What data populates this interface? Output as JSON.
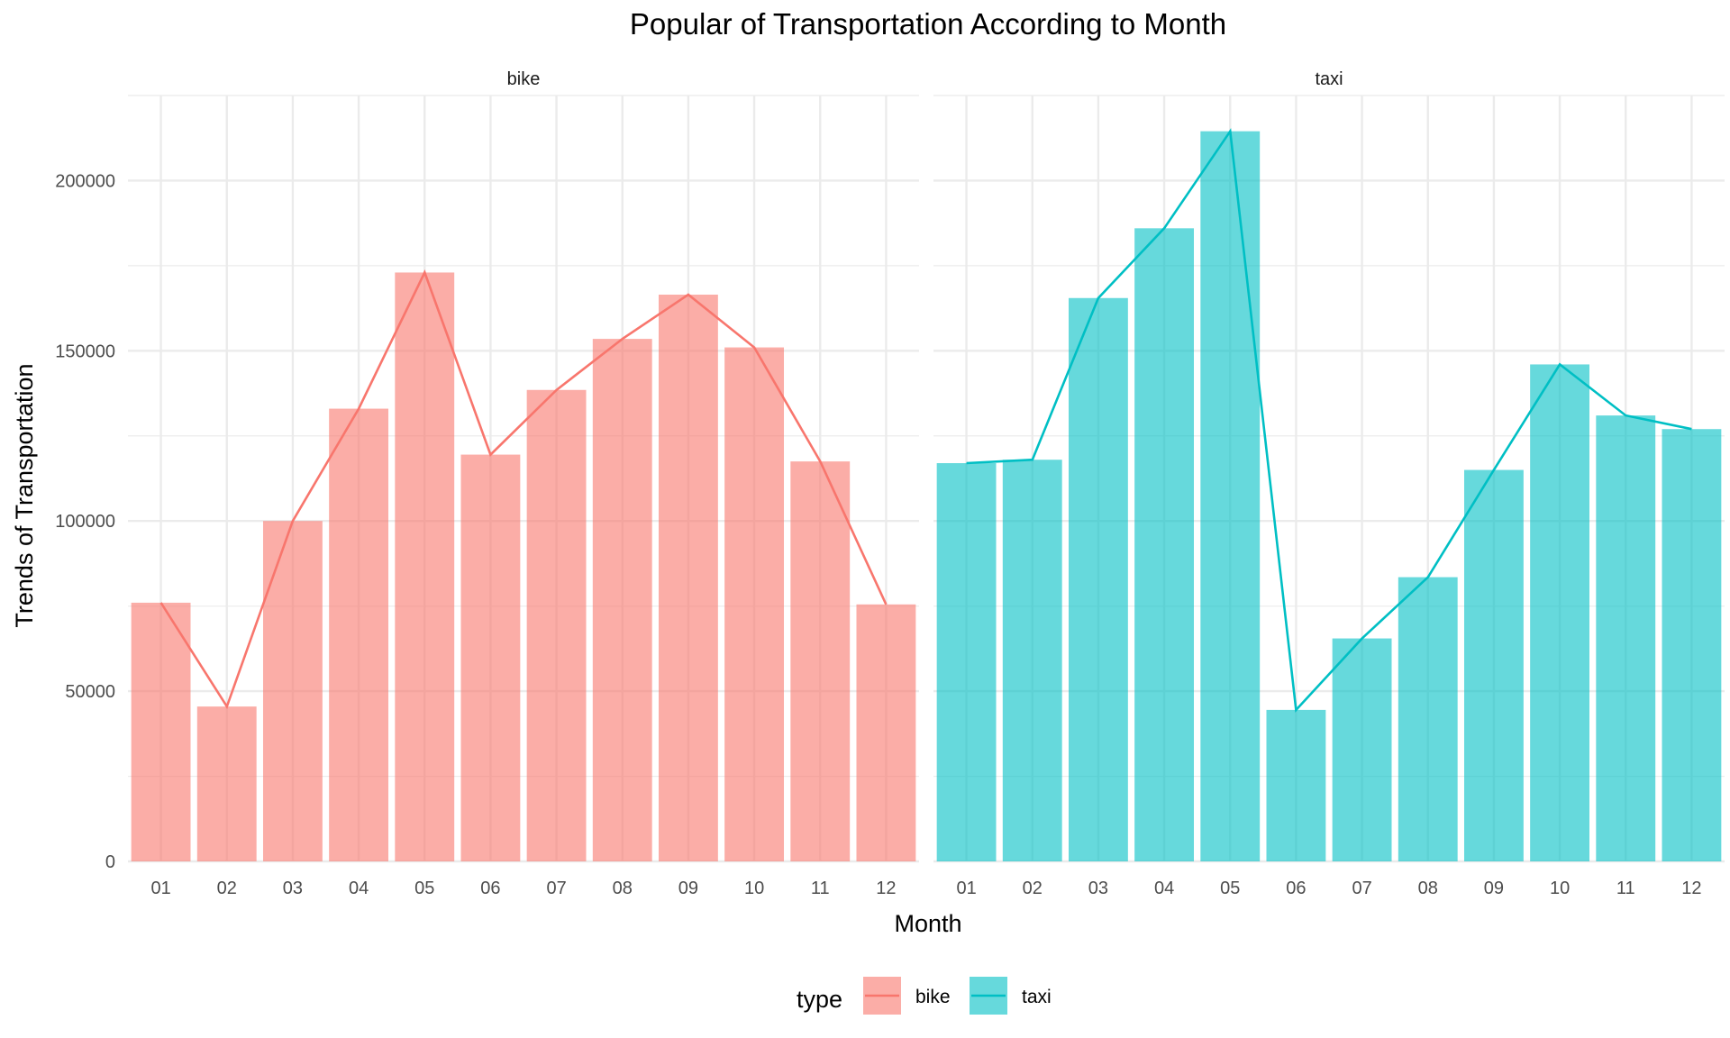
{
  "chart_data": {
    "type": "bar",
    "title": "Popular of Transportation According to Month",
    "xlabel": "Month",
    "ylabel": "Trends of Transportation",
    "ylim": [
      0,
      225000
    ],
    "yticks": [
      0,
      50000,
      100000,
      150000,
      200000
    ],
    "ytick_labels": [
      "0",
      "50000",
      "100000",
      "150000",
      "200000"
    ],
    "categories": [
      "01",
      "02",
      "03",
      "04",
      "05",
      "06",
      "07",
      "08",
      "09",
      "10",
      "11",
      "12"
    ],
    "facets": [
      {
        "name": "bike",
        "color": "#f8766d",
        "values": [
          76000,
          45500,
          100000,
          133000,
          173000,
          119500,
          138500,
          153500,
          166500,
          151000,
          117500,
          75500
        ]
      },
      {
        "name": "taxi",
        "color": "#00bfc4",
        "values": [
          117000,
          118000,
          165500,
          186000,
          214500,
          44500,
          65500,
          83500,
          115000,
          146000,
          131000,
          127000
        ]
      }
    ],
    "grid": true,
    "legend": {
      "title": "type",
      "placement": "bottom",
      "entries": [
        "bike",
        "taxi"
      ]
    },
    "overlay": "line"
  },
  "colors": {
    "bike": "#f8766d",
    "taxi": "#00bfc4",
    "grid": "#ebebeb"
  }
}
